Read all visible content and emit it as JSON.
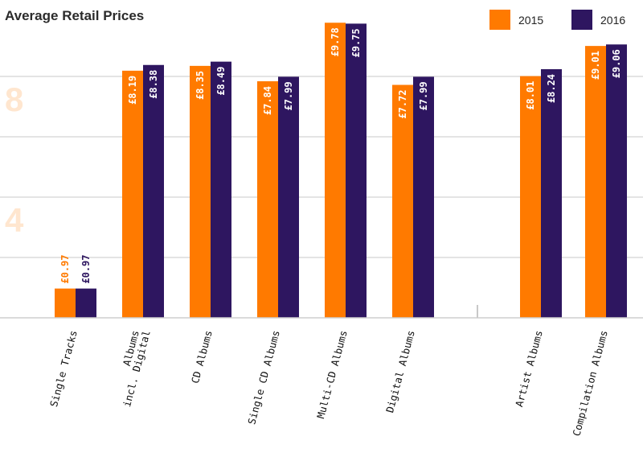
{
  "chart_data": {
    "type": "bar",
    "title": "Average Retail Prices",
    "categories": [
      "Single Tracks",
      "Albums\nincl. Digital",
      "CD Albums",
      "Single CD Albums",
      "Multi-CD Albums",
      "Digital Albums",
      "",
      "Artist Albums",
      "Compilation Albums"
    ],
    "series": [
      {
        "name": "2015",
        "color": "#ff7a00",
        "values": [
          0.97,
          8.19,
          8.35,
          7.84,
          9.78,
          7.72,
          null,
          8.01,
          9.01
        ],
        "labels": [
          "£0.97",
          "£8.19",
          "£8.35",
          "£7.84",
          "£9.78",
          "£7.72",
          "",
          "£8.01",
          "£9.01"
        ]
      },
      {
        "name": "2016",
        "color": "#2e1660",
        "values": [
          0.97,
          8.38,
          8.49,
          7.99,
          9.75,
          7.99,
          null,
          8.24,
          9.06
        ],
        "labels": [
          "£0.97",
          "£8.38",
          "£8.49",
          "£7.99",
          "£9.75",
          "£7.99",
          "",
          "£8.24",
          "£9.06"
        ]
      }
    ],
    "y_tick_labels": [
      "4",
      "8"
    ],
    "y_tick_values": [
      4,
      8
    ],
    "ylim": [
      0,
      10.5
    ],
    "grid": true,
    "legend_position": "top-right",
    "xlabel": "",
    "ylabel": ""
  }
}
